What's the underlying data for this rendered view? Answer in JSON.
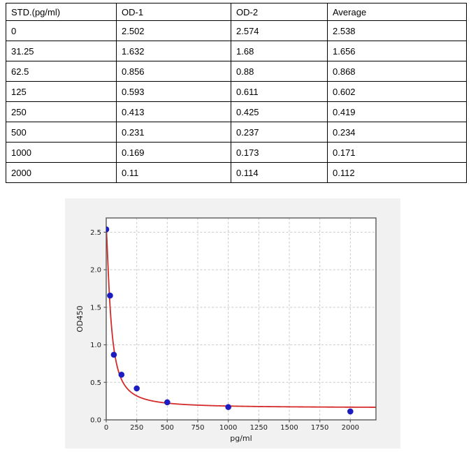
{
  "table": {
    "headers": [
      "STD.(pg/ml)",
      "OD-1",
      "OD-2",
      "Average"
    ],
    "rows": [
      [
        "0",
        "2.502",
        "2.574",
        "2.538"
      ],
      [
        "31.25",
        "1.632",
        "1.68",
        "1.656"
      ],
      [
        "62.5",
        "0.856",
        "0.88",
        "0.868"
      ],
      [
        "125",
        "0.593",
        "0.611",
        "0.602"
      ],
      [
        "250",
        "0.413",
        "0.425",
        "0.419"
      ],
      [
        "500",
        "0.231",
        "0.237",
        "0.234"
      ],
      [
        "1000",
        "0.169",
        "0.173",
        "0.171"
      ],
      [
        "2000",
        "0.11",
        "0.114",
        "0.112"
      ]
    ]
  },
  "chart_data": {
    "type": "scatter",
    "title": "",
    "xlabel": "pg/ml",
    "ylabel": "OD450",
    "x": [
      0,
      31.25,
      62.5,
      125,
      250,
      500,
      1000,
      2000
    ],
    "y": [
      2.538,
      1.656,
      0.868,
      0.602,
      0.419,
      0.234,
      0.171,
      0.112
    ],
    "fit_curve": {
      "model": "4PL",
      "a": 2.55,
      "b": 1.4,
      "c": 38,
      "d": 0.16
    },
    "xlim": [
      0,
      2210
    ],
    "ylim": [
      0,
      2.69
    ],
    "xticks": [
      0,
      250,
      500,
      750,
      1000,
      1250,
      1500,
      1750,
      2000
    ],
    "xtick_labels": [
      "0",
      "250",
      "500",
      "750",
      "1000",
      "1250",
      "1500",
      "1750",
      "2000"
    ],
    "yticks": [
      0,
      0.5,
      1.0,
      1.5,
      2.0,
      2.5
    ],
    "ytick_labels": [
      "0.0",
      "0.5",
      "1.0",
      "1.5",
      "2.0",
      "2.5"
    ],
    "grid": true,
    "legend_position": "none",
    "colors": {
      "point": "#1c1cc0",
      "curve": "#d42a2a",
      "figure_bg": "#f1f1f1",
      "plot_bg": "#ffffff",
      "grid": "#c9c9c9",
      "spine": "#595959",
      "tick": "#595959",
      "text": "#1a1a1a"
    }
  }
}
